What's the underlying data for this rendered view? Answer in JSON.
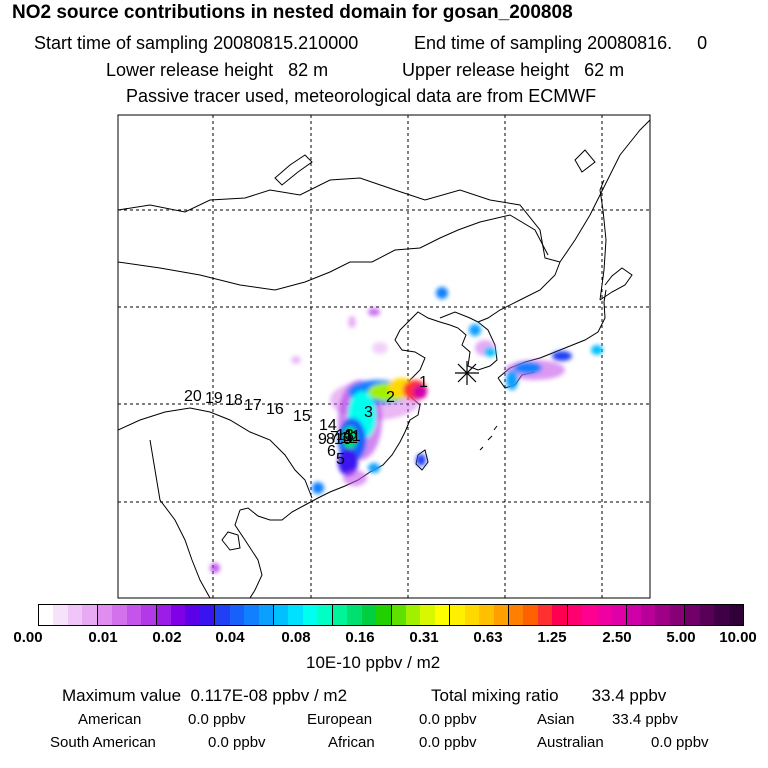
{
  "header": {
    "title": "NO2 source contributions in nested domain for gosan_200808",
    "start_label": "Start time of sampling 20080815.210000",
    "end_label": "End time of sampling 20080816.     0",
    "lower_label": "Lower release height   82 m",
    "upper_label": "Upper release height   62 m",
    "tracer_label": "Passive tracer used, meteorological data are from ECMWF"
  },
  "map": {
    "track_labels": [
      "20",
      "19",
      "18",
      "17",
      "16",
      "15",
      "14",
      "13",
      "12",
      "11",
      "10",
      "9",
      "8",
      "7",
      "6",
      "5",
      "4",
      "3",
      "2",
      "1"
    ],
    "receptor": "gosan"
  },
  "colorbar": {
    "ticks": [
      "0.00",
      "0.01",
      "0.02",
      "0.04",
      "0.08",
      "0.16",
      "0.31",
      "0.63",
      "1.25",
      "2.50",
      "5.00",
      "10.00"
    ],
    "unit": "10E-10 ppbv / m2",
    "colors": [
      "#ffffff",
      "#f7e2fb",
      "#efc6f7",
      "#e7aaf3",
      "#df8def",
      "#d371ec",
      "#c555ea",
      "#b338e8",
      "#9c1de8",
      "#8000e8",
      "#5c00e8",
      "#3a14f0",
      "#2040f5",
      "#1860fa",
      "#1080ff",
      "#0aa0ff",
      "#00c0ff",
      "#00e0ff",
      "#00ffee",
      "#00ffc4",
      "#00f59a",
      "#00e070",
      "#00d040",
      "#20d000",
      "#60e000",
      "#a0f000",
      "#d8f800",
      "#ffff00",
      "#fff000",
      "#ffd800",
      "#ffc000",
      "#ffa000",
      "#ff8000",
      "#ff6000",
      "#ff3030",
      "#ff0050",
      "#ff0070",
      "#ff0090",
      "#f000a0",
      "#e000a8",
      "#d000a8",
      "#b80098",
      "#a00088",
      "#880078",
      "#700068",
      "#580058",
      "#400048",
      "#300038"
    ]
  },
  "summary": {
    "max_label": "Maximum value  0.117E-08 ppbv / m2",
    "total_label": "Total mixing ratio       33.4 ppbv",
    "regions": [
      {
        "name": "American",
        "value": "0.0 ppbv"
      },
      {
        "name": "European",
        "value": "0.0 ppbv"
      },
      {
        "name": "Asian",
        "value": "33.4 ppbv"
      },
      {
        "name": "South American",
        "value": "0.0 ppbv"
      },
      {
        "name": "African",
        "value": "0.0 ppbv"
      },
      {
        "name": "Australian",
        "value": "0.0 ppbv"
      }
    ]
  }
}
